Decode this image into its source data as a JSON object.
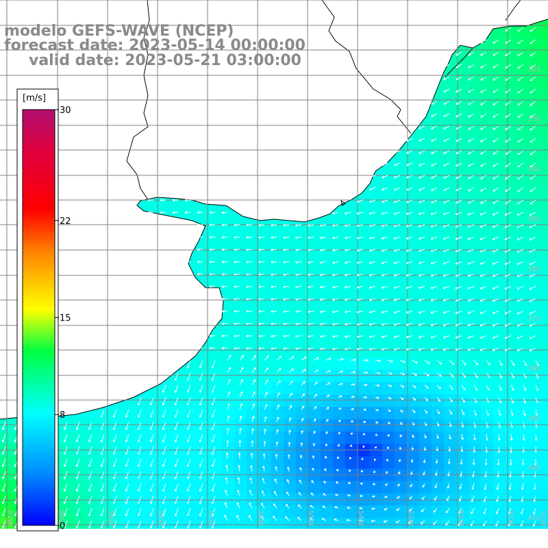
{
  "title": {
    "line1": "modelo GEFS-WAVE (NCEP)",
    "line2": "forecast date: 2023-05-14 00:00:00",
    "line3": "valid date: 2023-05-21 03:00:00"
  },
  "colorbar": {
    "unit": "[m/s]",
    "ticks": [
      {
        "value": 30,
        "label": "30"
      },
      {
        "value": 22,
        "label": "22"
      },
      {
        "value": 15,
        "label": "15"
      },
      {
        "value": 8,
        "label": "8"
      },
      {
        "value": 0,
        "label": "0"
      }
    ],
    "min": 0,
    "max": 30,
    "colors": [
      "#0000ff",
      "#0090ff",
      "#00ffff",
      "#00ff40",
      "#ffff00",
      "#ff8000",
      "#ff0000",
      "#c8005a",
      "#b0106e"
    ]
  },
  "grid_labels": {
    "lat": [
      "32S",
      "33S",
      "34S",
      "35S",
      "36S",
      "37S",
      "38S",
      "39S",
      "40S",
      "41S"
    ],
    "lon": [
      "61W",
      "60W",
      "59W",
      "58W",
      "57W",
      "56W",
      "55W",
      "54W",
      "53W",
      "52W",
      "51W",
      "50W"
    ]
  },
  "colors": {
    "land": "#ffffff",
    "coast": "#000000",
    "grid": "#7f7f7f",
    "arrow": "#ffffff",
    "title": "#8a8a8a"
  }
}
